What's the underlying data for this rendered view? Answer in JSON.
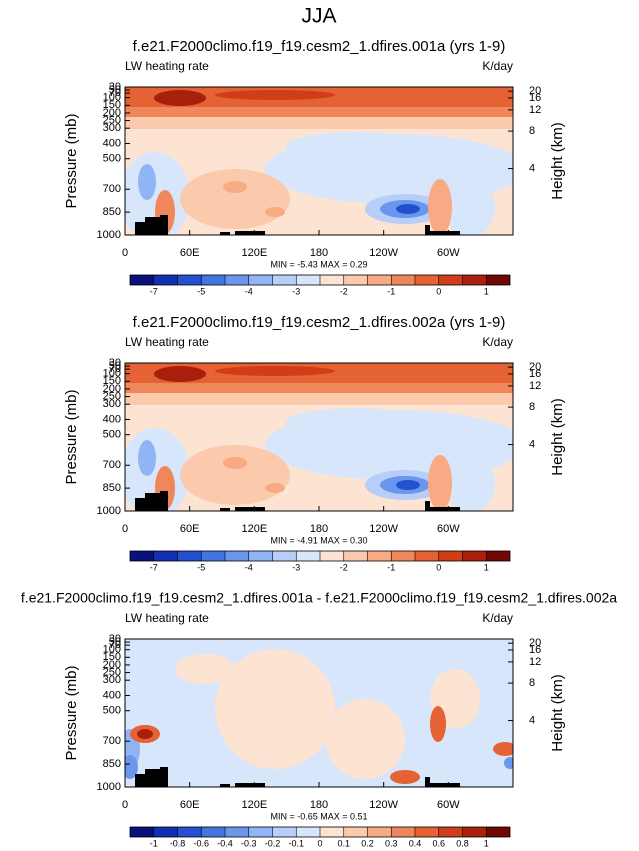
{
  "figure_title": "JJA",
  "chart_data": [
    {
      "type": "contour",
      "title": "f.e21.F2000climo.f19_f19.cesm2_1.dfires.001a (yrs 1-9)",
      "left_label": "LW heating rate",
      "right_label": "K/day",
      "ylabel": "Pressure (mb)",
      "y2label": "Height (km)",
      "xlim": [
        0,
        360
      ],
      "xticks": [
        0,
        {
          "value": 60,
          "label": "60E"
        },
        {
          "value": 120,
          "label": "120E"
        },
        180,
        {
          "value": 240,
          "label": "120W"
        },
        {
          "value": 300,
          "label": "60W"
        }
      ],
      "ylim": [
        1000,
        30
      ],
      "yticks": [
        1000,
        850,
        700,
        500,
        400,
        300,
        250,
        200,
        150,
        100,
        70,
        50,
        30
      ],
      "y2ticks": [
        4,
        8,
        12,
        16,
        20
      ],
      "stats": "MIN = -5.43  MAX = 0.29",
      "colorbar": {
        "levels": [
          -7,
          -6,
          -5,
          -4.5,
          -4,
          -3.5,
          -3,
          -2.5,
          -2,
          -1.5,
          -1,
          -0.5,
          0,
          0.5,
          1
        ],
        "ticks": [
          -7,
          -5,
          -4,
          -3,
          -2,
          -1,
          0,
          1
        ],
        "colors": [
          "#08127a",
          "#1030b0",
          "#2450d0",
          "#4274e2",
          "#6a96ee",
          "#91b4f4",
          "#b7cef8",
          "#d8e6fb",
          "#fde4d2",
          "#fbcaad",
          "#f7aa84",
          "#f0875a",
          "#e46233",
          "#cf3d19",
          "#a8200c",
          "#700804"
        ]
      }
    },
    {
      "type": "contour",
      "title": "f.e21.F2000climo.f19_f19.cesm2_1.dfires.002a (yrs 1-9)",
      "left_label": "LW heating rate",
      "right_label": "K/day",
      "ylabel": "Pressure (mb)",
      "y2label": "Height (km)",
      "xlim": [
        0,
        360
      ],
      "xticks": [
        0,
        {
          "value": 60,
          "label": "60E"
        },
        {
          "value": 120,
          "label": "120E"
        },
        180,
        {
          "value": 240,
          "label": "120W"
        },
        {
          "value": 300,
          "label": "60W"
        }
      ],
      "ylim": [
        1000,
        30
      ],
      "yticks": [
        1000,
        850,
        700,
        500,
        400,
        300,
        250,
        200,
        150,
        100,
        70,
        50,
        30
      ],
      "y2ticks": [
        4,
        8,
        12,
        16,
        20
      ],
      "stats": "MIN = -4.91  MAX = 0.30",
      "colorbar": {
        "levels": [
          -7,
          -6,
          -5,
          -4.5,
          -4,
          -3.5,
          -3,
          -2.5,
          -2,
          -1.5,
          -1,
          -0.5,
          0,
          0.5,
          1
        ],
        "ticks": [
          -7,
          -5,
          -4,
          -3,
          -2,
          -1,
          0,
          1
        ],
        "colors": [
          "#08127a",
          "#1030b0",
          "#2450d0",
          "#4274e2",
          "#6a96ee",
          "#91b4f4",
          "#b7cef8",
          "#d8e6fb",
          "#fde4d2",
          "#fbcaad",
          "#f7aa84",
          "#f0875a",
          "#e46233",
          "#cf3d19",
          "#a8200c",
          "#700804"
        ]
      }
    },
    {
      "type": "contour",
      "title": "f.e21.F2000climo.f19_f19.cesm2_1.dfires.001a - f.e21.F2000climo.f19_f19.cesm2_1.dfires.002a",
      "left_label": "LW heating rate",
      "right_label": "K/day",
      "ylabel": "Pressure (mb)",
      "y2label": "Height (km)",
      "xlim": [
        0,
        360
      ],
      "xticks": [
        0,
        {
          "value": 60,
          "label": "60E"
        },
        {
          "value": 120,
          "label": "120E"
        },
        180,
        {
          "value": 240,
          "label": "120W"
        },
        {
          "value": 300,
          "label": "60W"
        }
      ],
      "ylim": [
        1000,
        30
      ],
      "yticks": [
        1000,
        850,
        700,
        500,
        400,
        300,
        250,
        200,
        150,
        100,
        70,
        50,
        30
      ],
      "y2ticks": [
        4,
        8,
        12,
        16,
        20
      ],
      "stats": "MIN = -0.65  MAX = 0.51",
      "colorbar": {
        "levels": [
          -1,
          -0.8,
          -0.6,
          -0.4,
          -0.3,
          -0.2,
          -0.1,
          0,
          0.1,
          0.2,
          0.3,
          0.4,
          0.6,
          0.8,
          1
        ],
        "ticks": [
          -1,
          -0.8,
          -0.6,
          -0.4,
          -0.3,
          -0.2,
          -0.1,
          0,
          0.1,
          0.2,
          0.3,
          0.4,
          0.6,
          0.8,
          1
        ],
        "colors": [
          "#08127a",
          "#1030b0",
          "#2450d0",
          "#4274e2",
          "#6a96ee",
          "#91b4f4",
          "#b7cef8",
          "#d8e6fb",
          "#fde4d2",
          "#fbcaad",
          "#f7aa84",
          "#f0875a",
          "#e46233",
          "#cf3d19",
          "#a8200c",
          "#700804"
        ]
      }
    }
  ]
}
